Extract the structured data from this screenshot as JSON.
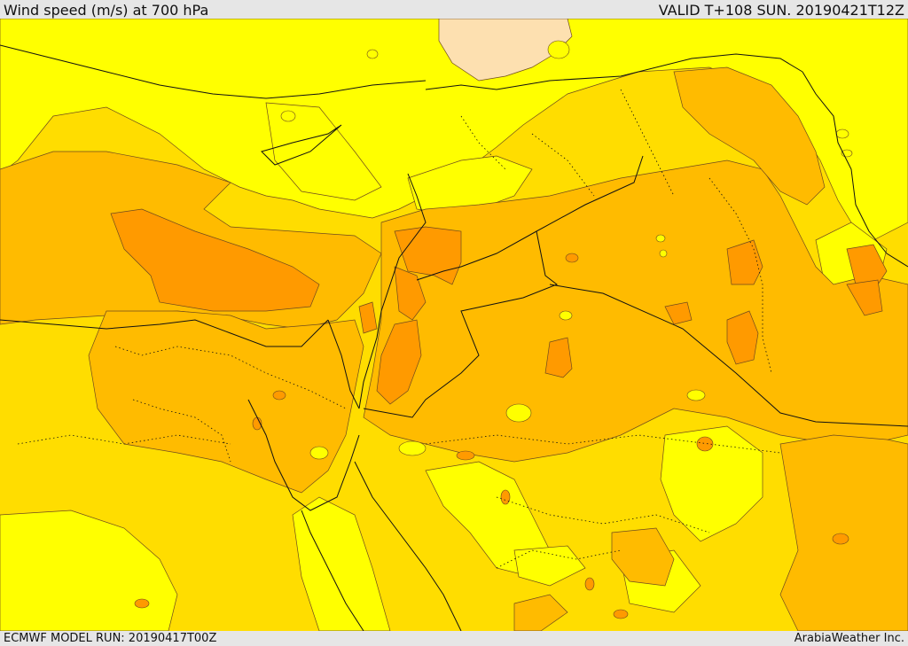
{
  "header": {
    "title": "Wind speed (m/s) at 700 hPa",
    "valid": "VALID T+108 SUN. 20190421T12Z"
  },
  "footer": {
    "model_run": "ECMWF MODEL RUN: 20190417T00Z",
    "credit": "ArabiaWeather Inc."
  },
  "colors": {
    "band_5_10": "#ffff00",
    "band_10_15": "#ffdd00",
    "band_15_20": "#ffbb00",
    "band_20_25": "#ff9a00",
    "band_0_5": "#fde0b0",
    "contour": "#6e4a1e",
    "border": "#111111"
  }
}
